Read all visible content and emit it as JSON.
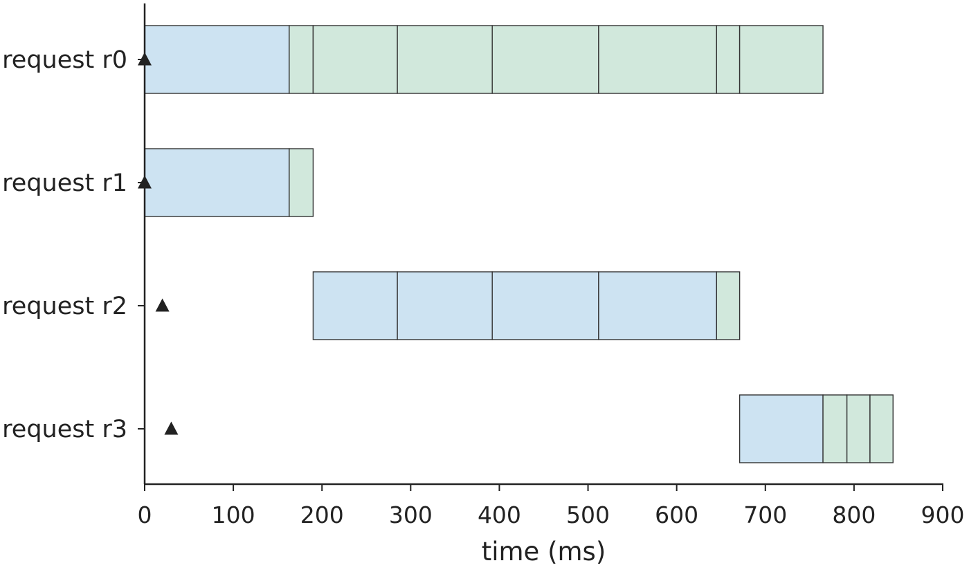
{
  "chart_data": {
    "type": "gantt",
    "title": "",
    "xlabel": "time (ms)",
    "ylabel": "",
    "xlim": [
      0,
      900
    ],
    "xticks": [
      0,
      100,
      200,
      300,
      400,
      500,
      600,
      700,
      800,
      900
    ],
    "grid": false,
    "legend": "none",
    "colors": {
      "blue": "#cde3f2",
      "green": "#d1e8dc",
      "edge": "#333333",
      "marker": "#222222",
      "axis": "#222222"
    },
    "rows": [
      {
        "label": "request r0",
        "arrival": 0,
        "segments": [
          {
            "start": 0,
            "end": 163,
            "color": "blue"
          },
          {
            "start": 163,
            "end": 190,
            "color": "green"
          },
          {
            "start": 190,
            "end": 285,
            "color": "green"
          },
          {
            "start": 285,
            "end": 392,
            "color": "green"
          },
          {
            "start": 392,
            "end": 512,
            "color": "green"
          },
          {
            "start": 512,
            "end": 645,
            "color": "green"
          },
          {
            "start": 645,
            "end": 671,
            "color": "green"
          },
          {
            "start": 671,
            "end": 765,
            "color": "green"
          }
        ]
      },
      {
        "label": "request r1",
        "arrival": 0,
        "segments": [
          {
            "start": 0,
            "end": 163,
            "color": "blue"
          },
          {
            "start": 163,
            "end": 190,
            "color": "green"
          }
        ]
      },
      {
        "label": "request r2",
        "arrival": 20,
        "segments": [
          {
            "start": 190,
            "end": 285,
            "color": "blue"
          },
          {
            "start": 285,
            "end": 392,
            "color": "blue"
          },
          {
            "start": 392,
            "end": 512,
            "color": "blue"
          },
          {
            "start": 512,
            "end": 645,
            "color": "blue"
          },
          {
            "start": 645,
            "end": 671,
            "color": "green"
          }
        ]
      },
      {
        "label": "request r3",
        "arrival": 30,
        "segments": [
          {
            "start": 671,
            "end": 765,
            "color": "blue"
          },
          {
            "start": 765,
            "end": 792,
            "color": "green"
          },
          {
            "start": 792,
            "end": 818,
            "color": "green"
          },
          {
            "start": 818,
            "end": 844,
            "color": "green"
          }
        ]
      }
    ]
  }
}
